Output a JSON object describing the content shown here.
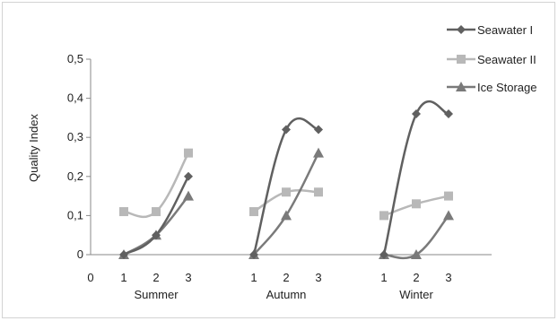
{
  "chart_data": {
    "type": "line",
    "title": "",
    "ylabel": "Quality Index",
    "ylim": [
      0,
      0.5
    ],
    "ytick_labels": [
      "0",
      "0,1",
      "0,2",
      "0,3",
      "0,4",
      "0,5"
    ],
    "yticks": [
      0,
      0.1,
      0.2,
      0.3,
      0.4,
      0.5
    ],
    "x_origin_label": "0",
    "legend_position": "top-right",
    "grid": false,
    "groups": [
      {
        "name": "Summer",
        "x": [
          "1",
          "2",
          "3"
        ]
      },
      {
        "name": "Autumn",
        "x": [
          "1",
          "2",
          "3"
        ]
      },
      {
        "name": "Winter",
        "x": [
          "1",
          "2",
          "3"
        ]
      }
    ],
    "series": [
      {
        "name": "Seawater I",
        "marker": "diamond",
        "color": "#606060",
        "values": [
          [
            0,
            0.05,
            0.2
          ],
          [
            0,
            0.32,
            0.32
          ],
          [
            0,
            0.36,
            0.36
          ]
        ]
      },
      {
        "name": "Seawater II",
        "marker": "square",
        "color": "#b8b8b8",
        "values": [
          [
            0.11,
            0.11,
            0.26
          ],
          [
            0.11,
            0.16,
            0.16
          ],
          [
            0.1,
            0.13,
            0.15
          ]
        ]
      },
      {
        "name": "Ice Storage",
        "marker": "triangle",
        "color": "#7a7a7a",
        "values": [
          [
            0,
            0.05,
            0.15
          ],
          [
            0,
            0.1,
            0.26
          ],
          [
            0,
            0,
            0.1
          ]
        ]
      }
    ]
  }
}
